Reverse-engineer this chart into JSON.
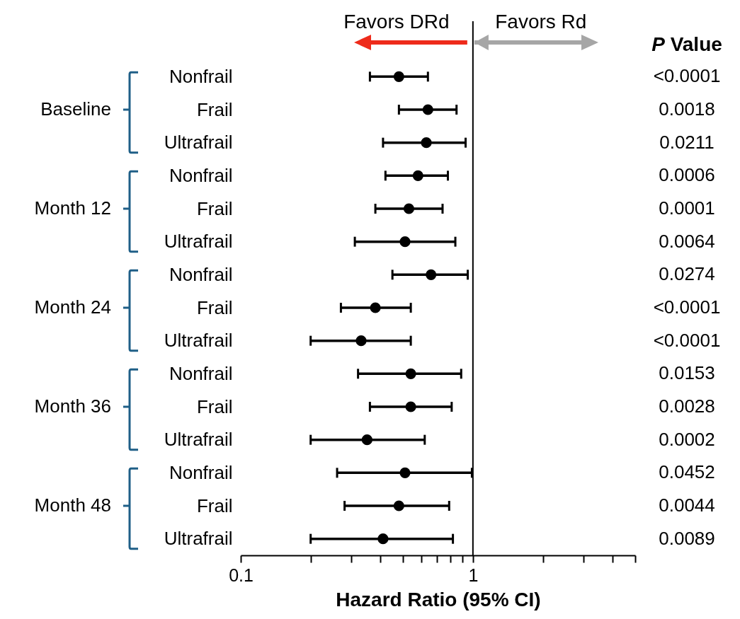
{
  "chart_data": {
    "type": "scatter",
    "xlabel": "Hazard Ratio (95% CI)",
    "categories": [
      "Nonfrail",
      "Frail",
      "Ultrafrail",
      "Nonfrail",
      "Frail",
      "Ultrafrail",
      "Nonfrail",
      "Frail",
      "Ultrafrail",
      "Nonfrail",
      "Frail",
      "Ultrafrail",
      "Nonfrail",
      "Frail",
      "Ultrafrail"
    ],
    "values": [
      0.48,
      0.64,
      0.63,
      0.58,
      0.53,
      0.51,
      0.66,
      0.38,
      0.33,
      0.54,
      0.54,
      0.35,
      0.51,
      0.48,
      0.41
    ],
    "errors": [
      [
        0.36,
        0.64
      ],
      [
        0.48,
        0.85
      ],
      [
        0.41,
        0.93
      ],
      [
        0.42,
        0.78
      ],
      [
        0.38,
        0.74
      ],
      [
        0.31,
        0.84
      ],
      [
        0.45,
        0.95
      ],
      [
        0.27,
        0.54
      ],
      [
        0.2,
        0.54
      ],
      [
        0.32,
        0.89
      ],
      [
        0.36,
        0.81
      ],
      [
        0.2,
        0.62
      ],
      [
        0.26,
        0.99
      ],
      [
        0.28,
        0.79
      ],
      [
        0.2,
        0.82
      ]
    ],
    "orientation": "horizontal",
    "color": "#000000",
    "marker": "circle",
    "log": "x",
    "xlim": [
      0.1,
      5
    ],
    "xticks": [
      0.1,
      {
        "value": 0.2,
        "label": null
      },
      {
        "value": 0.3,
        "label": null
      },
      {
        "value": 0.4,
        "label": null
      },
      {
        "value": 0.5,
        "label": null
      },
      {
        "value": 0.6,
        "label": null
      },
      {
        "value": 0.7,
        "label": null
      },
      {
        "value": 0.8,
        "label": null
      },
      {
        "value": 0.9,
        "label": null
      },
      1,
      {
        "value": 2,
        "label": null
      },
      {
        "value": 3,
        "label": null
      },
      {
        "value": 4,
        "label": null
      },
      {
        "value": 5,
        "label": null
      }
    ],
    "ref_lines": [
      {
        "axis": "x",
        "value": 1,
        "color": "#000000"
      }
    ],
    "annotations": [
      "Baseline",
      "Month 12",
      "Month 24",
      "Month 36",
      "Month 48",
      "Favors DRd",
      "Favors Rd",
      "P Value",
      "<0.0001",
      "0.0018",
      "0.0211",
      "0.0006",
      "0.0001",
      "0.0064",
      "0.0274",
      "<0.0001",
      "<0.0001",
      "0.0153",
      "0.0028",
      "0.0002",
      "0.0452",
      "0.0044",
      "0.0089"
    ]
  }
}
